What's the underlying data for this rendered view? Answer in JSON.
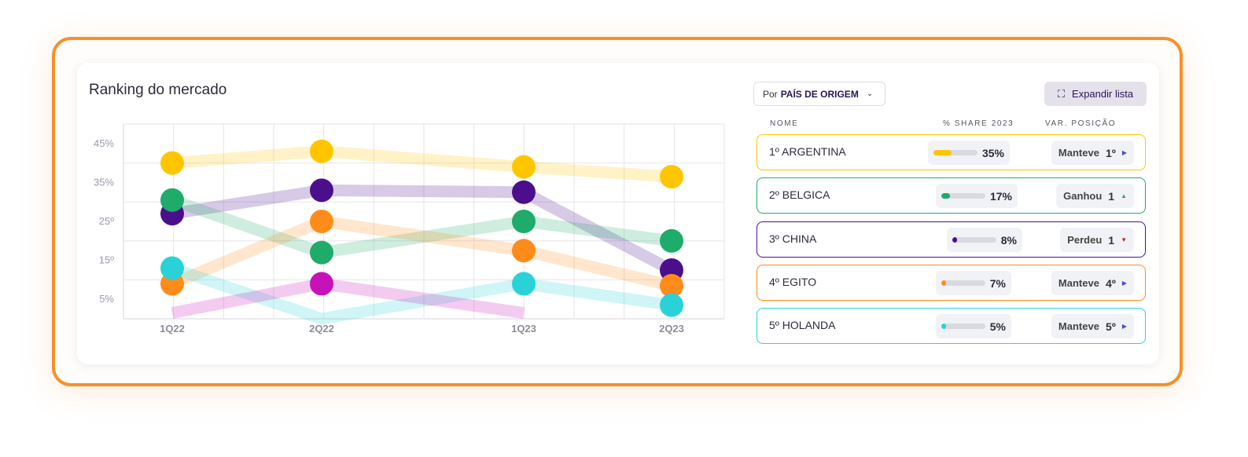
{
  "card": {
    "title": "Ranking do mercado"
  },
  "filter": {
    "prefix": "Por",
    "value": "PAÍS DE ORIGEM",
    "icon": "chevron-down-icon"
  },
  "expand": {
    "label": "Expandir lista",
    "icon": "expand-icon"
  },
  "table": {
    "headers": {
      "name": "NOME",
      "share": "% SHARE 2023",
      "var": "VAR. POSIÇÃO"
    },
    "rows": [
      {
        "name": "1º ARGENTINA",
        "share": "35%",
        "share_value": 35,
        "status": "Manteve",
        "pos": "1º",
        "arrow": "right",
        "color": "#ffc600"
      },
      {
        "name": "2º BELGICA",
        "share": "17%",
        "share_value": 17,
        "status": "Ganhou",
        "pos": "1",
        "arrow": "up",
        "color": "#1fab6a"
      },
      {
        "name": "3º CHINA",
        "share": "8%",
        "share_value": 8,
        "status": "Perdeu",
        "pos": "1",
        "arrow": "down",
        "color": "#4b0f8e"
      },
      {
        "name": "4º EGITO",
        "share": "7%",
        "share_value": 7,
        "status": "Manteve",
        "pos": "4º",
        "arrow": "right",
        "color": "#ff8c1a"
      },
      {
        "name": "5º HOLANDA",
        "share": "5%",
        "share_value": 5,
        "status": "Manteve",
        "pos": "5º",
        "arrow": "right",
        "color": "#2ad2d8"
      }
    ]
  },
  "chart_data": {
    "type": "line",
    "title": "",
    "xlabel": "",
    "ylabel": "",
    "x": [
      "1Q22",
      "2Q22",
      "1Q23",
      "2Q23"
    ],
    "y_ticks": [
      "45%",
      "35%",
      "25º",
      "15º",
      "5%"
    ],
    "y_tick_values": [
      45,
      35,
      25,
      15,
      5
    ],
    "ylim": [
      0,
      50
    ],
    "grid": true,
    "legend": "none",
    "series": [
      {
        "color": "#ffc600",
        "values": [
          40,
          43,
          39,
          36.5
        ]
      },
      {
        "color": "#4b0f8e",
        "values": [
          27,
          33,
          32.5,
          12.5
        ]
      },
      {
        "color": "#1fab6a",
        "values": [
          30.5,
          17,
          25,
          20
        ]
      },
      {
        "color": "#ff8c1a",
        "values": [
          9,
          25,
          17.5,
          8.5
        ]
      },
      {
        "color": "#2ad2d8",
        "values": [
          13,
          0,
          9,
          3.5
        ]
      },
      {
        "color": "#c712ba",
        "values": [
          1.5,
          9,
          1.5,
          null
        ]
      }
    ]
  }
}
